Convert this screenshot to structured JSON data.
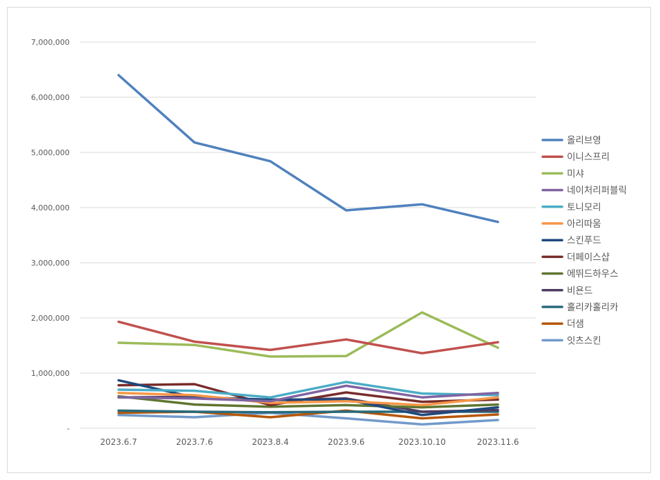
{
  "chart_data": {
    "type": "line",
    "title": "",
    "xlabel": "",
    "ylabel": "",
    "categories": [
      "2023.6.7",
      "2023.7.6",
      "2023.8.4",
      "2023.9.6",
      "2023.10.10",
      "2023.11.6"
    ],
    "ylim": [
      0,
      7000000
    ],
    "yticks": [
      0,
      1000000,
      2000000,
      3000000,
      4000000,
      5000000,
      6000000,
      7000000
    ],
    "ytick_labels": [
      "-",
      "1,000,000",
      "2,000,000",
      "3,000,000",
      "4,000,000",
      "5,000,000",
      "6,000,000",
      "7,000,000"
    ],
    "grid": "horizontal",
    "legend_position": "right",
    "series": [
      {
        "name": "올리브영",
        "color": "#4f81bd",
        "values": [
          6400000,
          5180000,
          4840000,
          3950000,
          4060000,
          3740000
        ]
      },
      {
        "name": "이니스프리",
        "color": "#c0504d",
        "values": [
          1930000,
          1570000,
          1420000,
          1610000,
          1360000,
          1560000
        ]
      },
      {
        "name": "미샤",
        "color": "#9bbb59",
        "values": [
          1550000,
          1510000,
          1300000,
          1310000,
          2100000,
          1460000
        ]
      },
      {
        "name": "네이처리퍼블릭",
        "color": "#8064a2",
        "values": [
          560000,
          540000,
          490000,
          770000,
          560000,
          640000
        ]
      },
      {
        "name": "토니모리",
        "color": "#4bacc6",
        "values": [
          700000,
          680000,
          560000,
          840000,
          630000,
          600000
        ]
      },
      {
        "name": "아리따움",
        "color": "#f79646",
        "values": [
          640000,
          600000,
          460000,
          490000,
          420000,
          560000
        ]
      },
      {
        "name": "스킨푸드",
        "color": "#1f497d",
        "values": [
          870000,
          560000,
          520000,
          520000,
          240000,
          380000
        ]
      },
      {
        "name": "더페이스샵",
        "color": "#772c2a",
        "values": [
          780000,
          800000,
          420000,
          650000,
          480000,
          520000
        ]
      },
      {
        "name": "에뛰드하우스",
        "color": "#5f7530",
        "values": [
          580000,
          430000,
          390000,
          420000,
          380000,
          430000
        ]
      },
      {
        "name": "비욘드",
        "color": "#4d3b62",
        "values": [
          560000,
          570000,
          510000,
          540000,
          300000,
          330000
        ]
      },
      {
        "name": "홀리카홀리카",
        "color": "#276a7c",
        "values": [
          320000,
          300000,
          290000,
          300000,
          300000,
          300000
        ]
      },
      {
        "name": "더샘",
        "color": "#b65708",
        "values": [
          280000,
          300000,
          200000,
          320000,
          180000,
          250000
        ]
      },
      {
        "name": "잇츠스킨",
        "color": "#729aca",
        "values": [
          240000,
          200000,
          280000,
          180000,
          70000,
          150000
        ]
      }
    ]
  }
}
